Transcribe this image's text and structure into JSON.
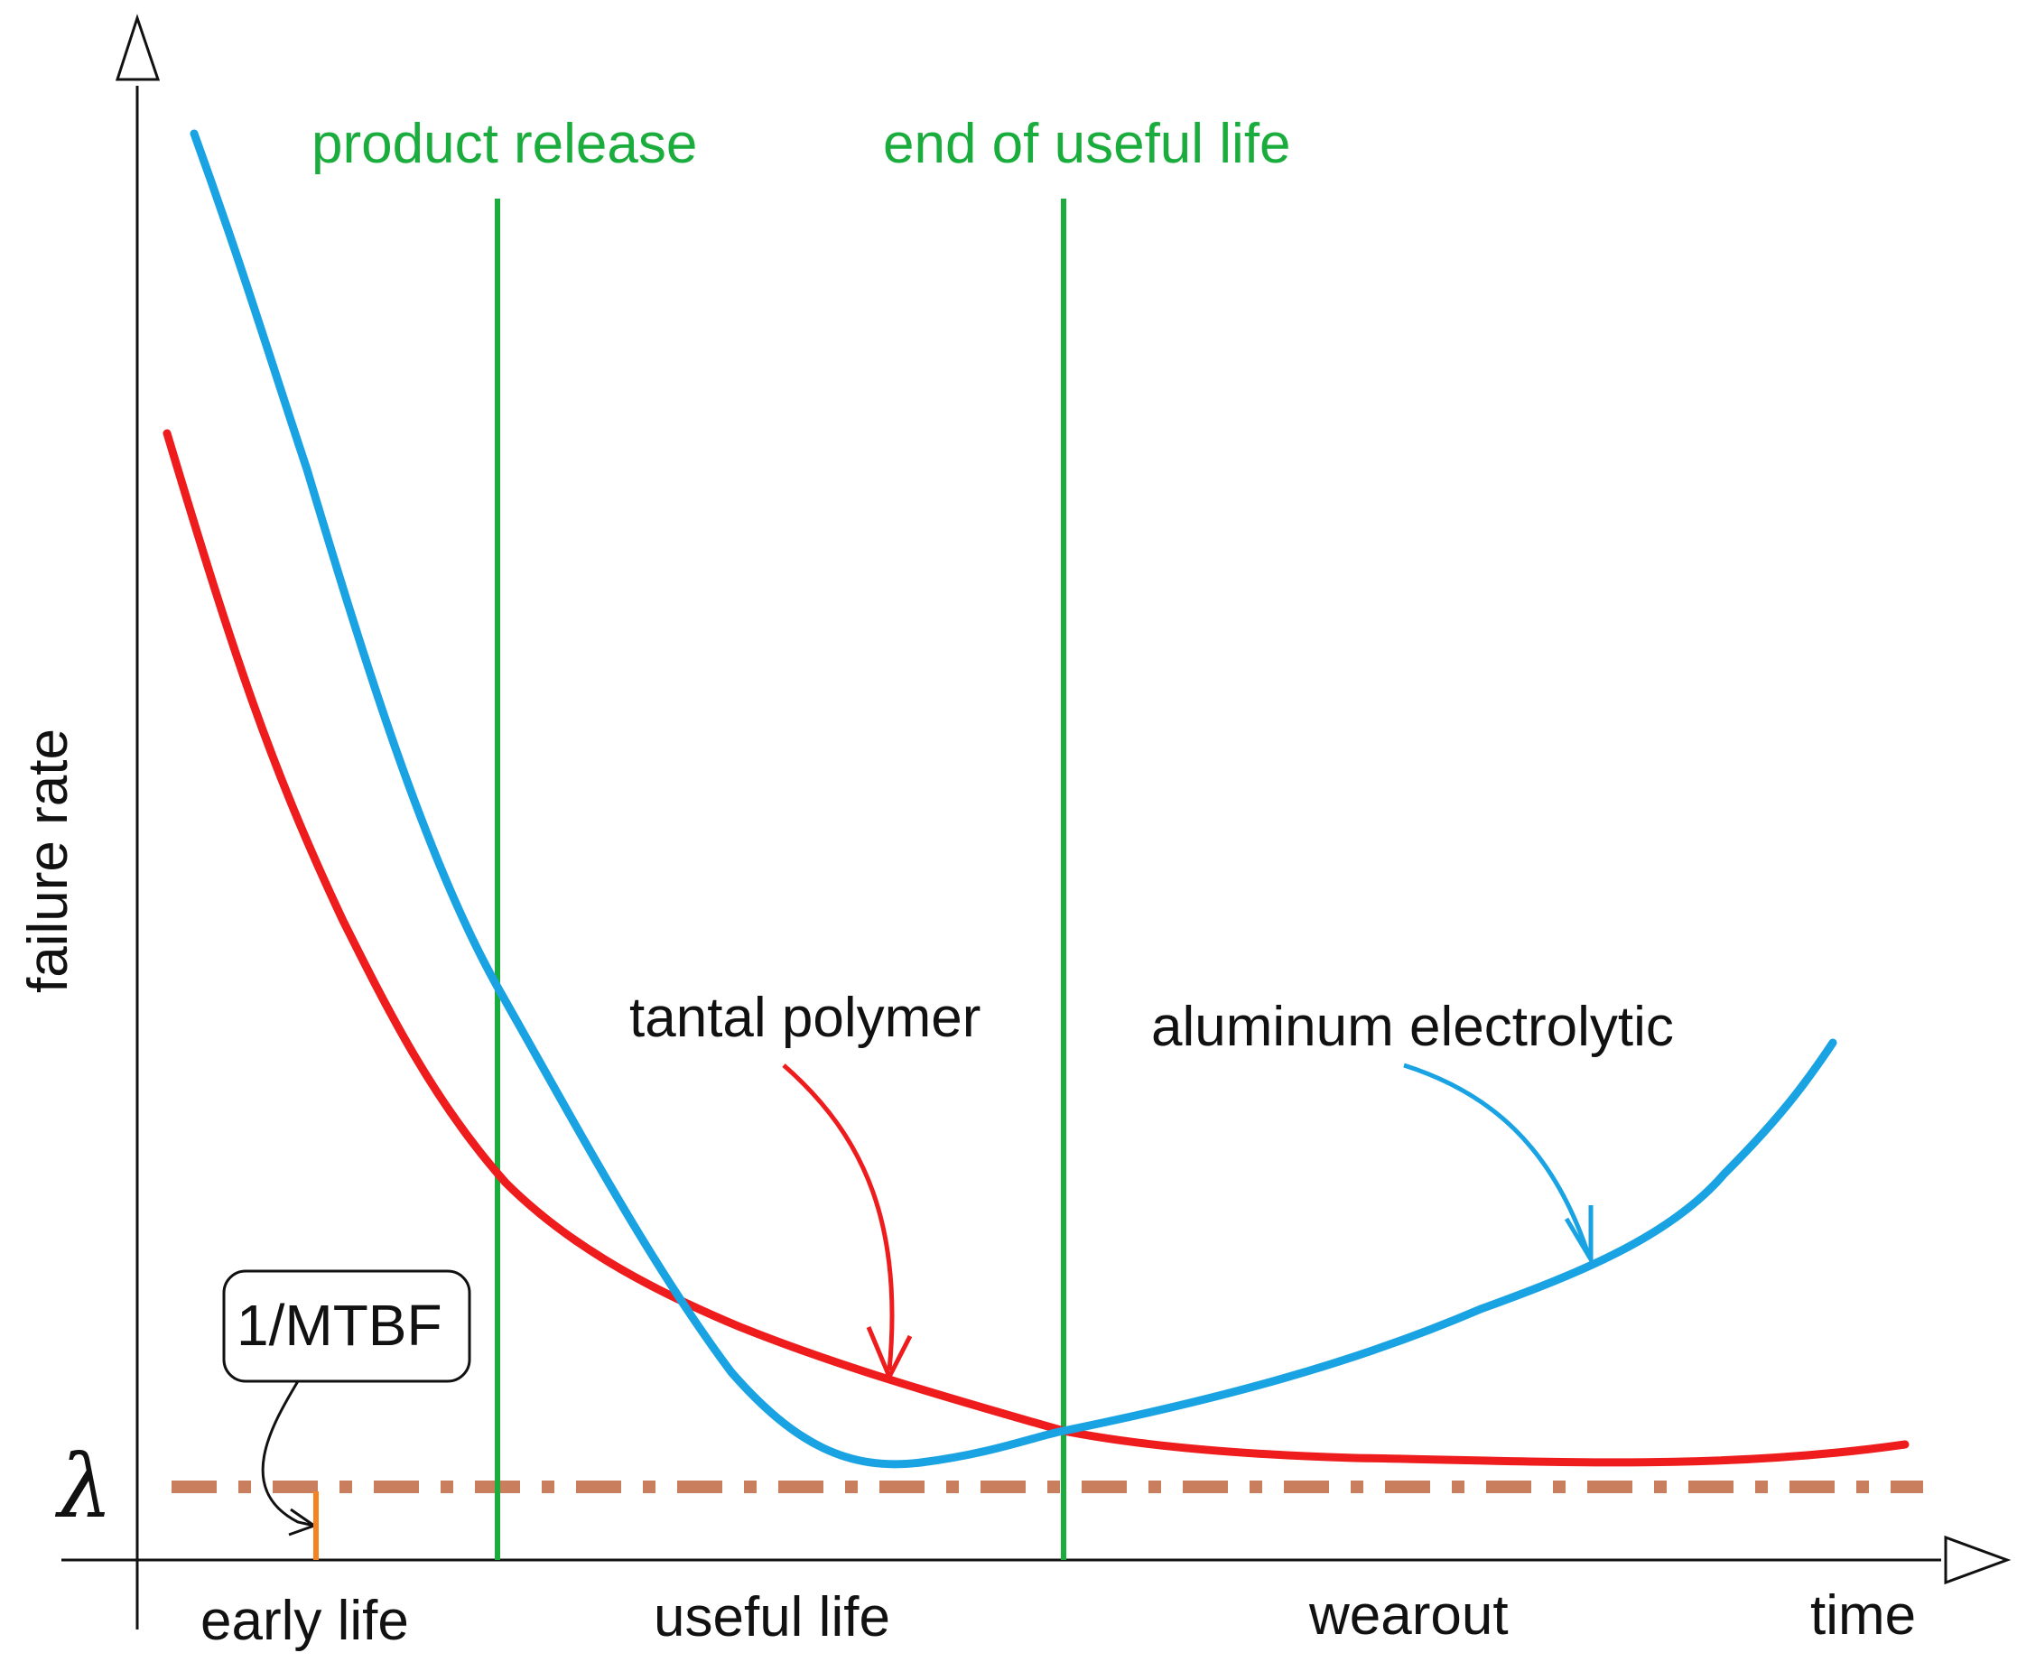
{
  "labels": {
    "product_release": "product release",
    "end_of_useful_life": "end of useful life",
    "tantal_polymer": "tantal polymer",
    "aluminum_electrolytic": "aluminum electrolytic",
    "failure_rate": "failure rate",
    "lambda": "λ",
    "mtbf": "1/MTBF",
    "early_life": "early life",
    "useful_life": "useful life",
    "wearout": "wearout",
    "time": "time"
  },
  "colors": {
    "red_curve": "#ee1c1c",
    "blue_curve": "#1aa3e3",
    "green_lines": "#1aad3d",
    "lambda_line": "#c97e5e",
    "mtbf_marker": "#f48220",
    "axes": "#111111"
  }
}
